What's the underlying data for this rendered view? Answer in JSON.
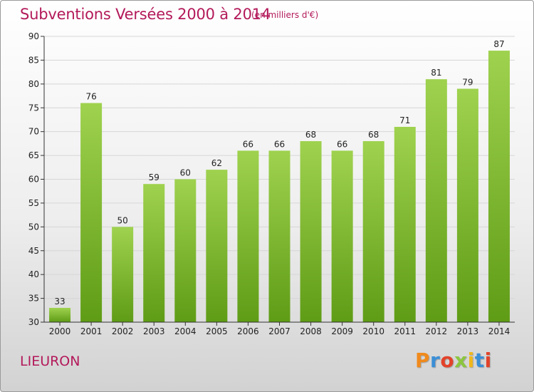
{
  "header": {
    "title": "Subventions Versées 2000 à 2014",
    "subtitle": "(en milliers d'€)"
  },
  "footer": {
    "place": "LIEURON",
    "logo_text": "Proxiti"
  },
  "colors": {
    "title": "#b3195a",
    "bar_top": "#9fd24f",
    "bar_bottom": "#5f9c16",
    "axis": "#333333",
    "grid": "#d6d6d6"
  },
  "chart_data": {
    "type": "bar",
    "title": "Subventions Versées 2000 à 2014",
    "subtitle": "(en milliers d'€)",
    "xlabel": "",
    "ylabel": "",
    "categories": [
      "2000",
      "2001",
      "2002",
      "2003",
      "2004",
      "2005",
      "2006",
      "2007",
      "2008",
      "2009",
      "2010",
      "2011",
      "2012",
      "2013",
      "2014"
    ],
    "values": [
      33,
      76,
      50,
      59,
      60,
      62,
      66,
      66,
      68,
      66,
      68,
      71,
      81,
      79,
      87
    ],
    "ylim": [
      30,
      90
    ],
    "yticks": [
      30,
      35,
      40,
      45,
      50,
      55,
      60,
      65,
      70,
      75,
      80,
      85,
      90
    ],
    "grid": true,
    "data_labels": true
  }
}
